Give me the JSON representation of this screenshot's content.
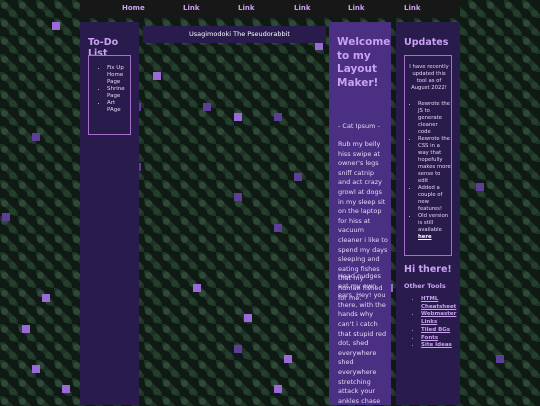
{
  "nav": {
    "links": [
      "Home",
      "Link",
      "Link",
      "Link",
      "Link",
      "Link"
    ]
  },
  "todo": {
    "title": "To-Do List",
    "items": [
      "Fix Up Home Page",
      "Shrine Page",
      "Art PAge"
    ]
  },
  "header": {
    "title": "Usagimodoki The Pseudorabbit"
  },
  "main": {
    "title": "Welcome to my Layout Maker!",
    "author": "- Cat Ipsum -",
    "paragraphs": [
      "Rub my belly hiss swipe at owner's legs sniff catnip and act crazy growl at dogs in my sleep sit on the laptop for hiss at vacuum cleaner i like to spend my days sleeping and eating fishes that my human fished for me.",
      "Head nudges eat my own ears. Hey! you there, with the hands why can't i catch that stupid red dot, shed everywhere shed everywhere stretching attack your ankles chase"
    ]
  },
  "updates": {
    "title": "Updates",
    "intro": "I have recently updated this tool as of August 2022!",
    "items": [
      "Rewrote the JS to generate cleaner code",
      "Rewrote the CSS in a way that hopefully makes more sense to edit",
      "Added a couple of new features!",
      "Old version is still available"
    ],
    "old_version_link": "here"
  },
  "hi": {
    "title": "Hi there!"
  },
  "tools": {
    "title": "Other Tools",
    "links": [
      "HTML Cheatsheet",
      "Webmaster Links",
      "Tiled BGs",
      "Fonts",
      "Site Ideas"
    ]
  },
  "colors": {
    "accent": "#c9a3f2",
    "panel": "#2a1b4d",
    "panel_main": "#4a2f82"
  }
}
